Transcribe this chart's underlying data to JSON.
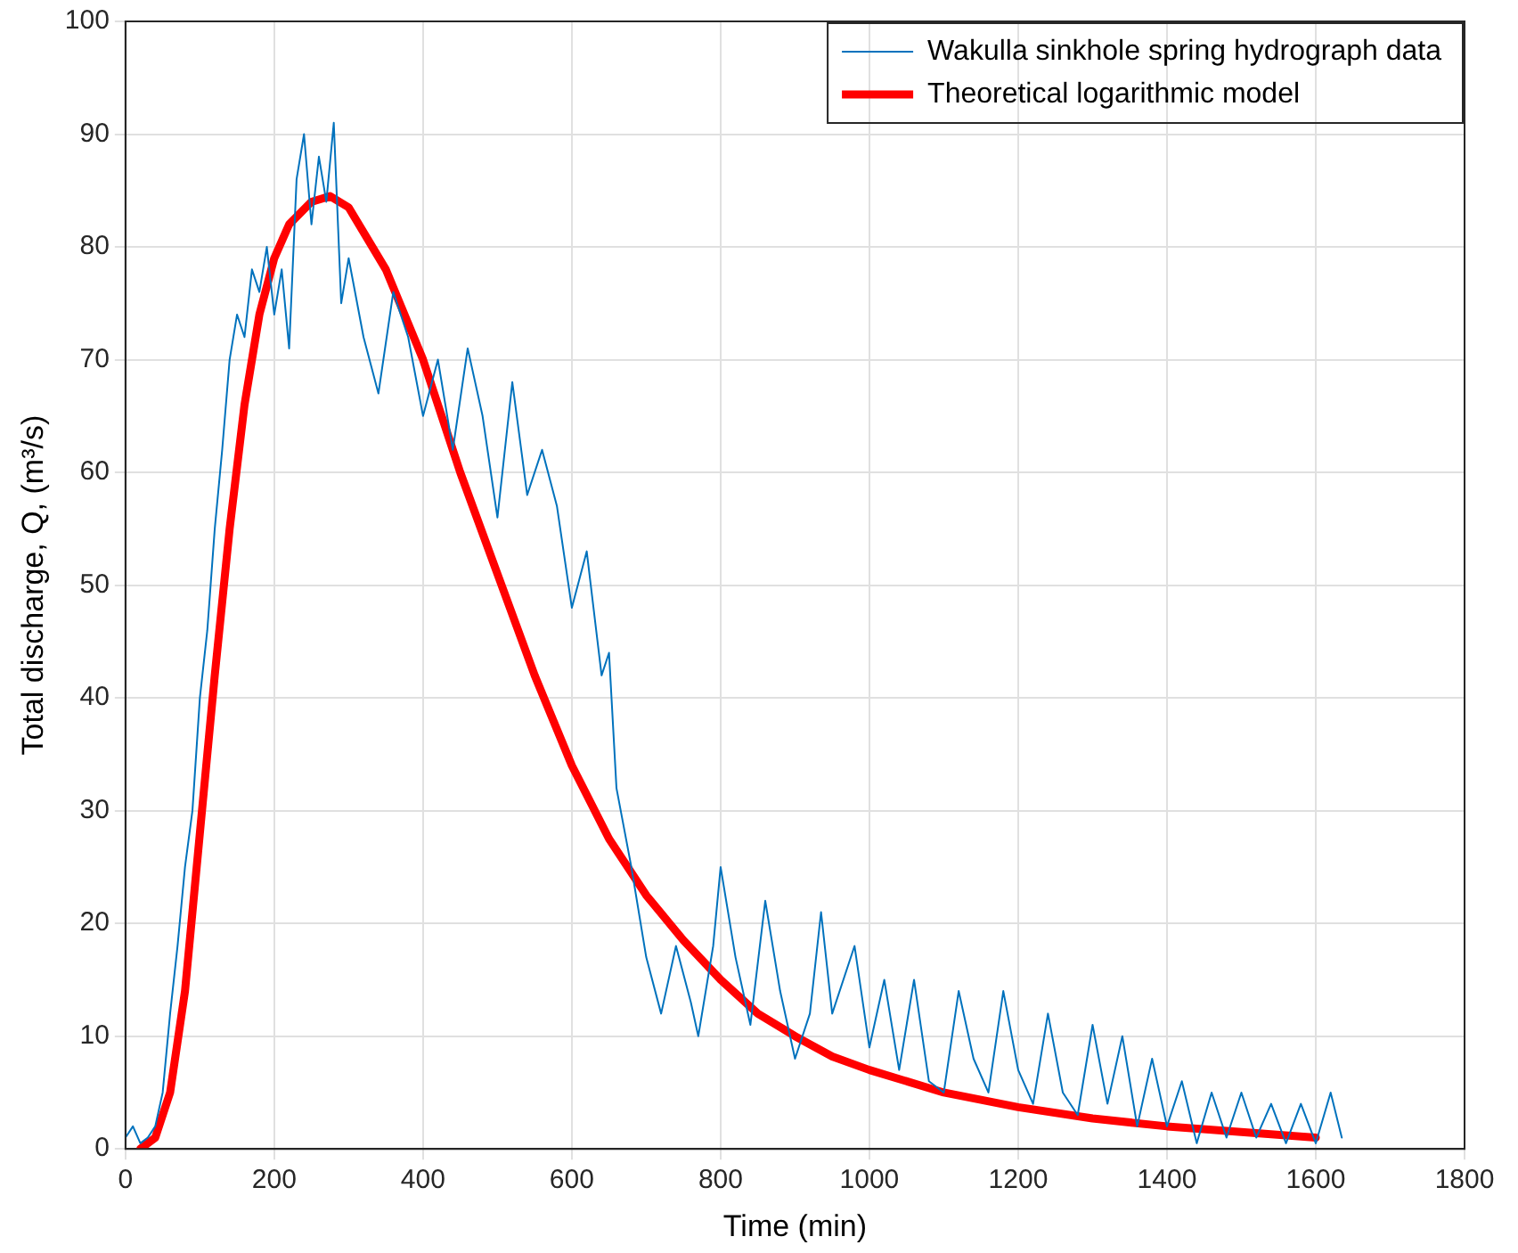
{
  "chart_data": {
    "type": "line",
    "xlabel": "Time (min)",
    "ylabel": "Total discharge, Q, (m³/s)",
    "xlim": [
      0,
      1800
    ],
    "xticks": [
      0,
      200,
      400,
      600,
      800,
      1000,
      1200,
      1400,
      1600,
      1800
    ],
    "ylim": [
      0,
      100
    ],
    "yticks": [
      0,
      10,
      20,
      30,
      40,
      50,
      60,
      70,
      80,
      90,
      100
    ],
    "grid": true,
    "legend": "top right",
    "marker": "none",
    "series": [
      {
        "name": "Wakulla sinkhole spring hydrograph data",
        "color": "#0072bd",
        "x": [
          0,
          10,
          20,
          30,
          40,
          50,
          60,
          70,
          80,
          90,
          100,
          110,
          120,
          130,
          140,
          150,
          160,
          170,
          180,
          190,
          200,
          210,
          220,
          230,
          240,
          250,
          260,
          270,
          280,
          290,
          300,
          320,
          340,
          360,
          380,
          400,
          420,
          440,
          460,
          480,
          500,
          520,
          540,
          560,
          580,
          600,
          620,
          640,
          650,
          660,
          680,
          700,
          720,
          740,
          760,
          770,
          790,
          800,
          820,
          840,
          860,
          880,
          900,
          920,
          935,
          950,
          980,
          1000,
          1020,
          1040,
          1060,
          1080,
          1100,
          1120,
          1140,
          1160,
          1180,
          1200,
          1220,
          1240,
          1260,
          1280,
          1300,
          1320,
          1340,
          1360,
          1380,
          1400,
          1420,
          1440,
          1460,
          1480,
          1500,
          1520,
          1540,
          1560,
          1580,
          1600,
          1620,
          1635
        ],
        "values": [
          1,
          2,
          0.5,
          1,
          2,
          5,
          12,
          18,
          25,
          30,
          40,
          46,
          55,
          62,
          70,
          74,
          72,
          78,
          76,
          80,
          74,
          78,
          71,
          86,
          90,
          82,
          88,
          84,
          91,
          75,
          79,
          72,
          67,
          76,
          72,
          65,
          70,
          62,
          71,
          65,
          56,
          68,
          58,
          62,
          57,
          48,
          53,
          42,
          44,
          32,
          25,
          17,
          12,
          18,
          13,
          10,
          18,
          25,
          17,
          11,
          22,
          14,
          8,
          12,
          21,
          12,
          18,
          9,
          15,
          7,
          15,
          6,
          5,
          14,
          8,
          5,
          14,
          7,
          4,
          12,
          5,
          3,
          11,
          4,
          10,
          2,
          8,
          2,
          6,
          0.5,
          5,
          1,
          5,
          1,
          4,
          0.5,
          4,
          0.5,
          5,
          1
        ]
      },
      {
        "name": "Theoretical logarithmic model",
        "color": "#ff0000",
        "x": [
          20,
          40,
          60,
          80,
          100,
          120,
          140,
          160,
          180,
          200,
          220,
          250,
          275,
          300,
          350,
          400,
          450,
          500,
          550,
          600,
          650,
          700,
          750,
          800,
          850,
          900,
          950,
          1000,
          1100,
          1200,
          1300,
          1400,
          1500,
          1600
        ],
        "values": [
          0,
          1,
          5,
          14,
          28,
          42,
          55,
          66,
          74,
          79,
          82,
          84,
          84.5,
          83.5,
          78,
          70,
          60,
          51,
          42,
          34,
          27.5,
          22.5,
          18.5,
          15,
          12,
          10,
          8.2,
          7,
          5,
          3.7,
          2.7,
          2,
          1.5,
          1
        ]
      }
    ]
  }
}
